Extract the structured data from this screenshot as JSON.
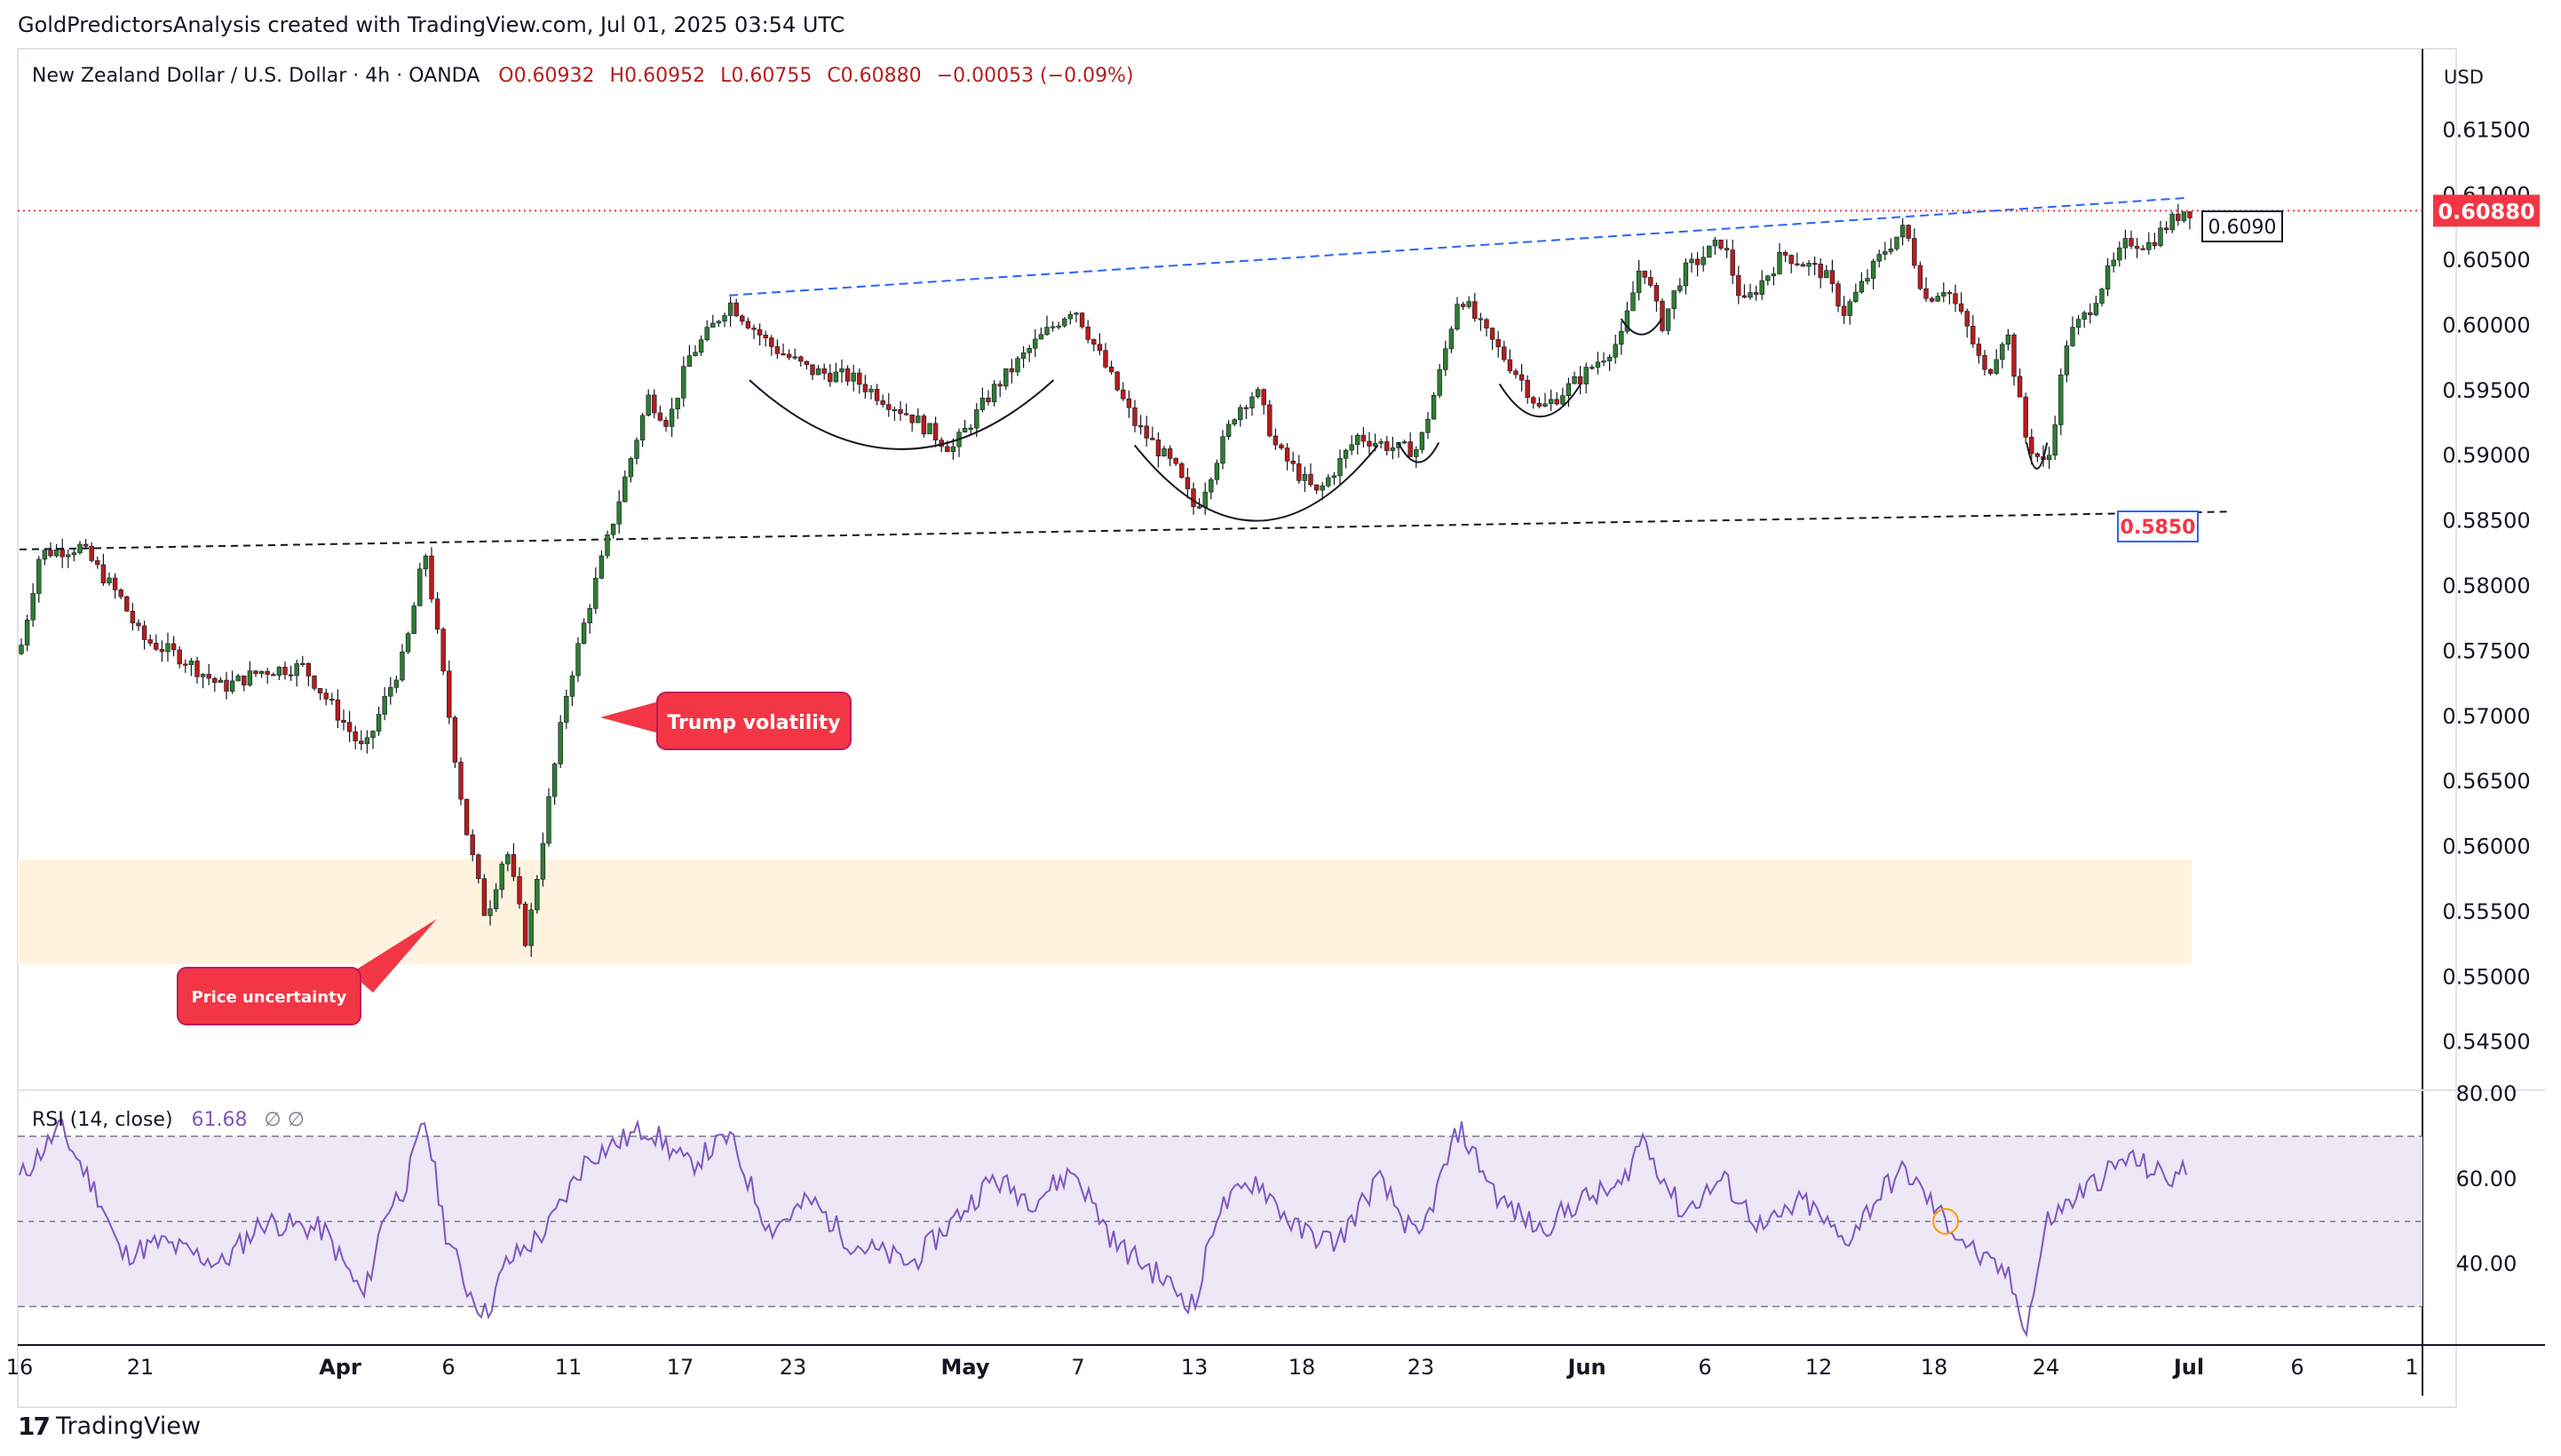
{
  "attribution": "GoldPredictorsAnalysis created with TradingView.com, Jul 01, 2025 03:54 UTC",
  "brand": {
    "name": "TradingView",
    "icon": "tradingview-logo-icon"
  },
  "header": {
    "symbol": "New Zealand Dollar / U.S. Dollar · 4h · OANDA",
    "open": "O0.60932",
    "high": "H0.60952",
    "low": "L0.60755",
    "close": "C0.60880",
    "change": "−0.00053 (−0.09%)"
  },
  "currency_label": "USD",
  "colors": {
    "up": "#089981",
    "down": "#f23645",
    "candle_up": "#2e7d32",
    "candle_down": "#b71c1c",
    "rsi_line": "#7e57c2",
    "rsi_band": "#ede7f6",
    "zone": "#fff3e0",
    "trend": "#2962ff",
    "callout": "#f23645",
    "price_line": "#f23645",
    "axis_text": "#131722"
  },
  "annotations": {
    "trump": "Trump volatility",
    "uncertainty": "Price uncertainty",
    "resistance_label": "0.6090",
    "support_label": "0.5850",
    "current_price_label": "0.60880"
  },
  "chart_data": [
    {
      "type": "candlestick",
      "x_ticks": [
        "16",
        "21",
        "Apr",
        "6",
        "11",
        "17",
        "23",
        "May",
        "7",
        "13",
        "18",
        "23",
        "Jun",
        "6",
        "12",
        "18",
        "24",
        "Jul",
        "6",
        "1"
      ],
      "y_ticks": [
        "0.61500",
        "0.61000",
        "0.60500",
        "0.60000",
        "0.59500",
        "0.59000",
        "0.58500",
        "0.58000",
        "0.57500",
        "0.57000",
        "0.56500",
        "0.56000",
        "0.55500",
        "0.55000",
        "0.54500"
      ],
      "ylim": [
        0.5415,
        0.6185
      ],
      "current_price": 0.6088,
      "demand_zone": [
        0.551,
        0.559
      ],
      "resistance_trendline": {
        "from": [
          "Apr 20",
          0.6023
        ],
        "to": [
          "Jul 1",
          0.6098
        ]
      },
      "support_trendline": {
        "from": [
          "Mar 16",
          0.5828
        ],
        "to": [
          "Jun 29",
          0.5857
        ]
      },
      "path": [
        [
          "Mar 16",
          0.5748
        ],
        [
          "Mar 17",
          0.5825
        ],
        [
          "Mar 19",
          0.583
        ],
        [
          "Mar 21",
          0.579
        ],
        [
          "Mar 22",
          0.576
        ],
        [
          "Mar 24",
          0.5745
        ],
        [
          "Mar 26",
          0.5722
        ],
        [
          "Mar 28",
          0.5735
        ],
        [
          "Mar 30",
          0.5738
        ],
        [
          "Apr 1",
          0.5695
        ],
        [
          "Apr 2",
          0.5672
        ],
        [
          "Apr 3",
          0.5712
        ],
        [
          "Apr 4",
          0.5748
        ],
        [
          "Apr 5",
          0.5828
        ],
        [
          "Apr 6",
          0.572
        ],
        [
          "Apr 7",
          0.5615
        ],
        [
          "Apr 8",
          0.5545
        ],
        [
          "Apr 9",
          0.56
        ],
        [
          "Apr 10",
          0.5525
        ],
        [
          "Apr 11",
          0.5625
        ],
        [
          "Apr 12",
          0.572
        ],
        [
          "Apr 13",
          0.578
        ],
        [
          "Apr 14",
          0.5835
        ],
        [
          "Apr 15",
          0.589
        ],
        [
          "Apr 16",
          0.5945
        ],
        [
          "Apr 17",
          0.5925
        ],
        [
          "Apr 18",
          0.5975
        ],
        [
          "Apr 19",
          0.5995
        ],
        [
          "Apr 20",
          0.6018
        ],
        [
          "Apr 22",
          0.5985
        ],
        [
          "Apr 24",
          0.5965
        ],
        [
          "Apr 26",
          0.596
        ],
        [
          "Apr 29",
          0.593
        ],
        [
          "May 1",
          0.5905
        ],
        [
          "May 3",
          0.595
        ],
        [
          "May 5",
          0.5985
        ],
        [
          "May 7",
          0.6015
        ],
        [
          "May 8",
          0.5985
        ],
        [
          "May 10",
          0.5925
        ],
        [
          "May 12",
          0.589
        ],
        [
          "May 13",
          0.5858
        ],
        [
          "May 15",
          0.5935
        ],
        [
          "May 16",
          0.595
        ],
        [
          "May 17",
          0.5905
        ],
        [
          "May 19",
          0.587
        ],
        [
          "May 21",
          0.5915
        ],
        [
          "May 23",
          0.5905
        ],
        [
          "May 24",
          0.5905
        ],
        [
          "May 25",
          0.596
        ],
        [
          "May 26",
          0.6025
        ],
        [
          "May 27",
          0.6
        ],
        [
          "May 29",
          0.596
        ],
        [
          "May 30",
          0.5935
        ],
        [
          "Jun 1",
          0.596
        ],
        [
          "Jun 3",
          0.599
        ],
        [
          "Jun 4",
          0.605
        ],
        [
          "Jun 5",
          0.6
        ],
        [
          "Jun 6",
          0.604
        ],
        [
          "Jun 8",
          0.6065
        ],
        [
          "Jun 9",
          0.6015
        ],
        [
          "Jun 11",
          0.6055
        ],
        [
          "Jun 13",
          0.604
        ],
        [
          "Jun 14",
          0.601
        ],
        [
          "Jun 16",
          0.6058
        ],
        [
          "Jun 17",
          0.6075
        ],
        [
          "Jun 18",
          0.602
        ],
        [
          "Jun 19",
          0.603
        ],
        [
          "Jun 20",
          0.6
        ],
        [
          "Jun 21",
          0.596
        ],
        [
          "Jun 22",
          0.5998
        ],
        [
          "Jun 23",
          0.591
        ],
        [
          "Jun 24",
          0.589
        ],
        [
          "Jun 25",
          0.599
        ],
        [
          "Jun 26",
          0.601
        ],
        [
          "Jun 27",
          0.604
        ],
        [
          "Jun 28",
          0.6065
        ],
        [
          "Jun 29",
          0.6062
        ],
        [
          "Jun 30",
          0.6078
        ],
        [
          "Jul 1",
          0.6092
        ],
        [
          "Jul 1",
          0.6088
        ]
      ]
    },
    {
      "type": "line",
      "title": "RSI (14, close)",
      "value": "61.68",
      "extra": "∅ ∅",
      "y_ticks": [
        "80.00",
        "60.00",
        "40.00"
      ],
      "ylim": [
        22,
        80
      ],
      "bands": [
        30,
        50,
        70
      ],
      "highlight": [
        "Jun 19",
        50
      ],
      "values": [
        [
          "Mar 16",
          60
        ],
        [
          "Mar 18",
          72
        ],
        [
          "Mar 20",
          55
        ],
        [
          "Mar 21",
          42
        ],
        [
          "Mar 23",
          45
        ],
        [
          "Mar 26",
          40
        ],
        [
          "Mar 28",
          50
        ],
        [
          "Mar 31",
          48
        ],
        [
          "Apr 2",
          32
        ],
        [
          "Apr 3",
          52
        ],
        [
          "Apr 4",
          58
        ],
        [
          "Apr 5",
          74
        ],
        [
          "Apr 6",
          48
        ],
        [
          "Apr 7",
          35
        ],
        [
          "Apr 8",
          28
        ],
        [
          "Apr 9",
          40
        ],
        [
          "Apr 11",
          48
        ],
        [
          "Apr 13",
          65
        ],
        [
          "Apr 16",
          72
        ],
        [
          "Apr 18",
          63
        ],
        [
          "Apr 20",
          70
        ],
        [
          "Apr 22",
          48
        ],
        [
          "Apr 24",
          55
        ],
        [
          "Apr 26",
          45
        ],
        [
          "Apr 29",
          40
        ],
        [
          "May 1",
          50
        ],
        [
          "May 3",
          60
        ],
        [
          "May 5",
          55
        ],
        [
          "May 7",
          62
        ],
        [
          "May 9",
          45
        ],
        [
          "May 11",
          38
        ],
        [
          "May 13",
          30
        ],
        [
          "May 14",
          52
        ],
        [
          "May 16",
          60
        ],
        [
          "May 18",
          48
        ],
        [
          "May 20",
          45
        ],
        [
          "May 22",
          60
        ],
        [
          "May 24",
          45
        ],
        [
          "May 26",
          72
        ],
        [
          "May 28",
          55
        ],
        [
          "May 30",
          48
        ],
        [
          "Jun 1",
          55
        ],
        [
          "Jun 3",
          58
        ],
        [
          "Jun 4",
          70
        ],
        [
          "Jun 6",
          52
        ],
        [
          "Jun 8",
          60
        ],
        [
          "Jun 10",
          48
        ],
        [
          "Jun 12",
          55
        ],
        [
          "Jun 14",
          45
        ],
        [
          "Jun 16",
          58
        ],
        [
          "Jun 17",
          62
        ],
        [
          "Jun 19",
          50
        ],
        [
          "Jun 21",
          40
        ],
        [
          "Jun 22",
          38
        ],
        [
          "Jun 23",
          25
        ],
        [
          "Jun 24",
          50
        ],
        [
          "Jun 26",
          58
        ],
        [
          "Jun 28",
          65
        ],
        [
          "Jun 30",
          60
        ],
        [
          "Jul 1",
          62
        ]
      ]
    }
  ]
}
